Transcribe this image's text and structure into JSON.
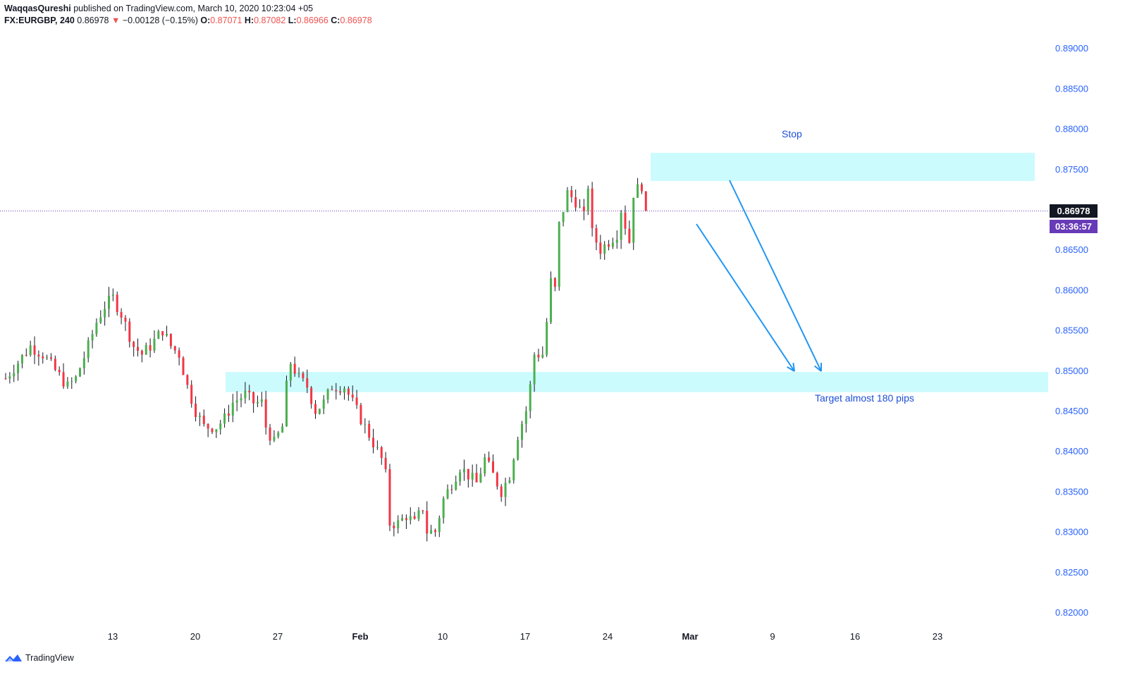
{
  "header": {
    "author": "WaqqasQureshi",
    "published": "published on TradingView.com, March 10, 2020 10:23:04 +05",
    "symbol": "FX:EURGBP, 240",
    "price": "0.86978",
    "arrow": "▼",
    "change": "−0.00128 (−0.15%)",
    "o_label": "O:",
    "o_value": "0.87071",
    "h_label": "H:",
    "h_value": "0.87082",
    "l_label": "L:",
    "l_value": "0.86966",
    "c_label": "C:",
    "c_value": "0.86978"
  },
  "price_badge": "0.86978",
  "countdown_badge": "03:36:57",
  "footer": {
    "brand": "TradingView"
  },
  "colors": {
    "up": "#26a69a",
    "down": "#ef5350",
    "bull_body": "#4caf50",
    "bear_body": "#f23645",
    "zone": "#ccfbfd",
    "arrow": "#2196f3",
    "axis_text": "#2962ff",
    "badge": "#673ab7"
  },
  "chart_data": {
    "type": "candlestick",
    "symbol": "FX:EURGBP",
    "interval": "240",
    "y_ticks": [
      0.89,
      0.885,
      0.88,
      0.875,
      0.87,
      0.865,
      0.86,
      0.855,
      0.85,
      0.845,
      0.84,
      0.835,
      0.83,
      0.825,
      0.82
    ],
    "y_tick_labels": [
      "0.89000",
      "0.88500",
      "0.88000",
      "0.87500",
      "",
      "0.86500",
      "0.86000",
      "0.85500",
      "0.85000",
      "0.84500",
      "0.84000",
      "0.83500",
      "0.83000",
      "0.82500",
      "0.82000"
    ],
    "x_ticks": [
      {
        "label": "13",
        "bold": false
      },
      {
        "label": "20",
        "bold": false
      },
      {
        "label": "27",
        "bold": false
      },
      {
        "label": "Feb",
        "bold": true
      },
      {
        "label": "10",
        "bold": false
      },
      {
        "label": "17",
        "bold": false
      },
      {
        "label": "24",
        "bold": false
      },
      {
        "label": "Mar",
        "bold": true
      },
      {
        "label": "9",
        "bold": false
      },
      {
        "label": "16",
        "bold": false
      },
      {
        "label": "23",
        "bold": false
      }
    ],
    "price_path": [
      [
        0,
        0.849
      ],
      [
        3,
        0.851
      ],
      [
        6,
        0.853
      ],
      [
        9,
        0.852
      ],
      [
        12,
        0.85
      ],
      [
        15,
        0.848
      ],
      [
        17,
        0.849
      ],
      [
        20,
        0.853
      ],
      [
        22,
        0.856
      ],
      [
        24,
        0.858
      ],
      [
        26,
        0.859
      ],
      [
        28,
        0.857
      ],
      [
        31,
        0.853
      ],
      [
        33,
        0.852
      ],
      [
        35,
        0.853
      ],
      [
        38,
        0.855
      ],
      [
        40,
        0.853
      ],
      [
        42,
        0.852
      ],
      [
        43,
        0.85
      ],
      [
        44,
        0.848
      ],
      [
        46,
        0.845
      ],
      [
        48,
        0.843
      ],
      [
        51,
        0.843
      ],
      [
        53,
        0.844
      ],
      [
        55,
        0.846
      ],
      [
        58,
        0.847
      ],
      [
        60,
        0.846
      ],
      [
        62,
        0.846
      ],
      [
        63,
        0.843
      ],
      [
        65,
        0.841
      ],
      [
        67,
        0.843
      ],
      [
        68,
        0.848
      ],
      [
        69,
        0.851
      ],
      [
        71,
        0.849
      ],
      [
        73,
        0.848
      ],
      [
        75,
        0.845
      ],
      [
        77,
        0.846
      ],
      [
        79,
        0.848
      ],
      [
        82,
        0.848
      ],
      [
        83,
        0.847
      ],
      [
        85,
        0.845
      ],
      [
        87,
        0.843
      ],
      [
        89,
        0.841
      ],
      [
        91,
        0.839
      ],
      [
        92,
        0.837
      ],
      [
        93,
        0.831
      ],
      [
        95,
        0.831
      ],
      [
        97,
        0.832
      ],
      [
        99,
        0.831
      ],
      [
        101,
        0.833
      ],
      [
        102,
        0.83
      ],
      [
        104,
        0.83
      ],
      [
        106,
        0.834
      ],
      [
        108,
        0.836
      ],
      [
        110,
        0.838
      ],
      [
        112,
        0.837
      ],
      [
        114,
        0.836
      ],
      [
        116,
        0.839
      ],
      [
        118,
        0.837
      ],
      [
        120,
        0.835
      ],
      [
        122,
        0.837
      ],
      [
        124,
        0.842
      ],
      [
        126,
        0.845
      ],
      [
        127,
        0.848
      ],
      [
        128,
        0.852
      ],
      [
        130,
        0.852
      ],
      [
        131,
        0.856
      ],
      [
        132,
        0.861
      ],
      [
        133,
        0.86
      ],
      [
        134,
        0.868
      ],
      [
        136,
        0.872
      ],
      [
        138,
        0.871
      ],
      [
        140,
        0.869
      ],
      [
        141,
        0.873
      ],
      [
        142,
        0.867
      ],
      [
        144,
        0.865
      ],
      [
        146,
        0.866
      ],
      [
        148,
        0.867
      ],
      [
        149,
        0.87
      ],
      [
        151,
        0.866
      ],
      [
        152,
        0.872
      ],
      [
        154,
        0.873
      ],
      [
        155,
        0.869
      ]
    ],
    "zones": [
      {
        "from_date": "Mar 2",
        "to_date": "Mar 12",
        "price_low": 0.8735,
        "price_high": 0.877
      },
      {
        "from_date": "Jan 23",
        "to_date": "Mar 12",
        "price_low": 0.8473,
        "price_high": 0.8498
      }
    ],
    "arrows": [
      {
        "from": [
          144,
          0.868
        ],
        "to": [
          163,
          0.85
        ]
      },
      {
        "from": [
          150,
          0.8735
        ],
        "to": [
          168,
          0.85
        ]
      }
    ],
    "annotations": {
      "stop": "Stop",
      "target": "Target almost 180 pips"
    },
    "last_price": 0.86978,
    "grid": false
  }
}
